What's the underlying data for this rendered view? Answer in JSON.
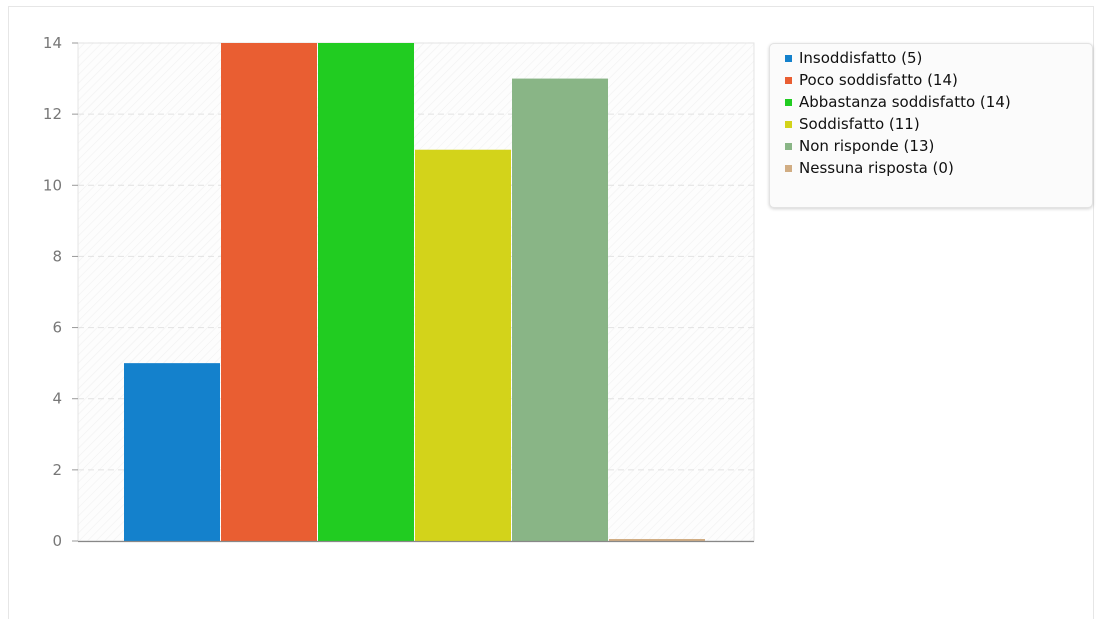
{
  "chart_data": {
    "type": "bar",
    "categories": [
      "Insoddisfatto (5)",
      "Poco soddisfatto (14)",
      "Abbastanza soddisfatto (14)",
      "Soddisfatto (11)",
      "Non risponde (13)",
      "Nessuna risposta (0)"
    ],
    "values": [
      5,
      14,
      14,
      11,
      13,
      0
    ],
    "colors": [
      "#1481cc",
      "#e95e32",
      "#21cc21",
      "#d3d31a",
      "#89b586",
      "#d1ad83"
    ],
    "ylim": [
      0,
      14
    ],
    "yticks": [
      0,
      2,
      4,
      6,
      8,
      10,
      12,
      14
    ],
    "grid": true,
    "legend_position": "right",
    "title": "",
    "xlabel": "",
    "ylabel": ""
  }
}
